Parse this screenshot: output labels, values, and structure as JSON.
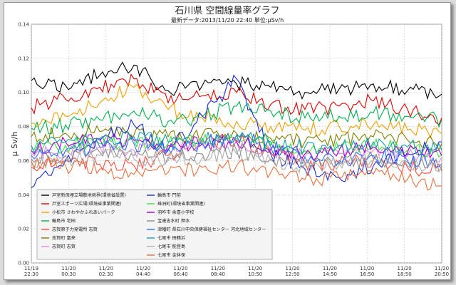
{
  "chart_data": {
    "type": "line",
    "title": "石川県 空間線量率グラフ",
    "subtitle": "最新データ:2013/11/20 22:40   単位:μSv/h",
    "ylabel": "μ Sv/h",
    "xlabel": "",
    "ylim": [
      0,
      0.14
    ],
    "yticks": [
      "0.00",
      "0.02",
      "0.04",
      "0.06",
      "0.08",
      "0.10",
      "0.12",
      "0.14"
    ],
    "ytick_values": [
      0,
      0.02,
      0.04,
      0.06,
      0.08,
      0.1,
      0.12,
      0.14
    ],
    "xlim": [
      "11/19 22:30",
      "11/20 22:40"
    ],
    "xtick_dates": [
      "11/19",
      "11/20",
      "11/20",
      "11/20",
      "11/20",
      "11/20",
      "11/20",
      "11/20",
      "11/20",
      "11/20",
      "11/20",
      "11/20"
    ],
    "xtick_times": [
      "22:30",
      "00:30",
      "02:30",
      "04:40",
      "06:40",
      "08:40",
      "10:50",
      "12:50",
      "14:50",
      "16:50",
      "18:50",
      "20:50"
    ],
    "grid": true,
    "legend_position": "lower-left",
    "x": [
      "22:30",
      "00:30",
      "02:30",
      "04:40",
      "06:40",
      "08:40",
      "10:50",
      "12:50",
      "14:50",
      "16:50",
      "18:50",
      "20:50",
      "22:40"
    ],
    "series": [
      {
        "name": "戸室新保埋立場敷地境界(環境省設置)",
        "color": "#000000",
        "values": [
          0.107,
          0.104,
          0.11,
          0.116,
          0.101,
          0.104,
          0.105,
          0.103,
          0.1,
          0.102,
          0.105,
          0.101,
          0.099
        ]
      },
      {
        "name": "戸室スポーツ広場(環境省事業関連)",
        "color": "#e00000",
        "values": [
          0.091,
          0.096,
          0.103,
          0.108,
          0.094,
          0.098,
          0.1,
          0.093,
          0.09,
          0.092,
          0.095,
          0.09,
          0.085
        ]
      },
      {
        "name": "小松市 さわやかふれあいパーク",
        "color": "#f0a000",
        "values": [
          0.082,
          0.086,
          0.094,
          0.103,
          0.09,
          0.085,
          0.083,
          0.08,
          0.078,
          0.08,
          0.081,
          0.078,
          0.076
        ]
      },
      {
        "name": "輪島市 宅田",
        "color": "#00b050",
        "values": [
          0.079,
          0.081,
          0.084,
          0.089,
          0.083,
          0.086,
          0.092,
          0.089,
          0.085,
          0.086,
          0.088,
          0.086,
          0.084
        ]
      },
      {
        "name": "志賀原子力発電所 志賀",
        "color": "#ff4c3f",
        "values": [
          0.056,
          0.06,
          0.058,
          0.057,
          0.063,
          0.071,
          0.072,
          0.065,
          0.059,
          0.058,
          0.06,
          0.056,
          0.054
        ]
      },
      {
        "name": "志賀町 富来",
        "color": "#7f7f00",
        "values": [
          0.074,
          0.076,
          0.077,
          0.075,
          0.074,
          0.075,
          0.076,
          0.073,
          0.071,
          0.072,
          0.074,
          0.072,
          0.07
        ]
      },
      {
        "name": "志賀町 志賀",
        "color": "#e08ae0",
        "values": [
          0.064,
          0.066,
          0.068,
          0.066,
          0.067,
          0.069,
          0.071,
          0.066,
          0.062,
          0.064,
          0.066,
          0.063,
          0.062
        ]
      },
      {
        "name": "輪島市 門前",
        "color": "#1a2cd6",
        "values": [
          0.044,
          0.06,
          0.072,
          0.081,
          0.066,
          0.086,
          0.108,
          0.064,
          0.055,
          0.05,
          0.057,
          0.064,
          0.071
        ]
      },
      {
        "name": "珠洲町(環境省事業関連)",
        "color": "#40e040",
        "values": [
          0.067,
          0.069,
          0.07,
          0.072,
          0.07,
          0.071,
          0.073,
          0.069,
          0.066,
          0.067,
          0.069,
          0.066,
          0.064
        ]
      },
      {
        "name": "羽咋市 余喜小学校",
        "color": "#a000d0",
        "values": [
          0.066,
          0.071,
          0.073,
          0.072,
          0.069,
          0.07,
          0.071,
          0.067,
          0.064,
          0.066,
          0.068,
          0.065,
          0.063
        ]
      },
      {
        "name": "宝達志水町 押水",
        "color": "#8a8a8a",
        "values": [
          0.061,
          0.063,
          0.065,
          0.063,
          0.062,
          0.064,
          0.066,
          0.061,
          0.058,
          0.059,
          0.061,
          0.059,
          0.057
        ]
      },
      {
        "name": "津幡町 県石川中央保健福祉センター 河北地域センター",
        "color": "#2f6fff",
        "values": [
          0.063,
          0.066,
          0.068,
          0.07,
          0.067,
          0.07,
          0.075,
          0.068,
          0.062,
          0.06,
          0.063,
          0.06,
          0.058
        ]
      },
      {
        "name": "七尾市 田鶴浜",
        "color": "#15a0a8",
        "values": [
          0.069,
          0.071,
          0.073,
          0.074,
          0.071,
          0.073,
          0.075,
          0.071,
          0.068,
          0.069,
          0.071,
          0.068,
          0.066
        ]
      },
      {
        "name": "七尾市 能登島",
        "color": "#b0b0b0",
        "values": [
          0.058,
          0.061,
          0.063,
          0.061,
          0.06,
          0.062,
          0.064,
          0.06,
          0.057,
          0.058,
          0.06,
          0.057,
          0.056
        ]
      },
      {
        "name": "七尾市 金鉢保",
        "color": "#e87040",
        "values": [
          0.06,
          0.057,
          0.055,
          0.052,
          0.053,
          0.056,
          0.057,
          0.053,
          0.049,
          0.05,
          0.052,
          0.049,
          0.045
        ]
      }
    ],
    "legend_columns": [
      [
        "戸室新保埋立場敷地境界(環境省設置)",
        "戸室スポーツ広場(環境省事業関連)",
        "小松市 さわやかふれあいパーク",
        "輪島市 宅田",
        "志賀原子力発電所 志賀",
        "志賀町 富来",
        "志賀町 志賀"
      ],
      [
        "輪島市 門前",
        "珠洲町(環境省事業関連)",
        "羽咋市 余喜小学校",
        "宝達志水町 押水",
        "津幡町 県石川中央保健福祉センター 河北地域センター",
        "七尾市 田鶴浜",
        "七尾市 能登島",
        "七尾市 金鉢保"
      ]
    ]
  }
}
